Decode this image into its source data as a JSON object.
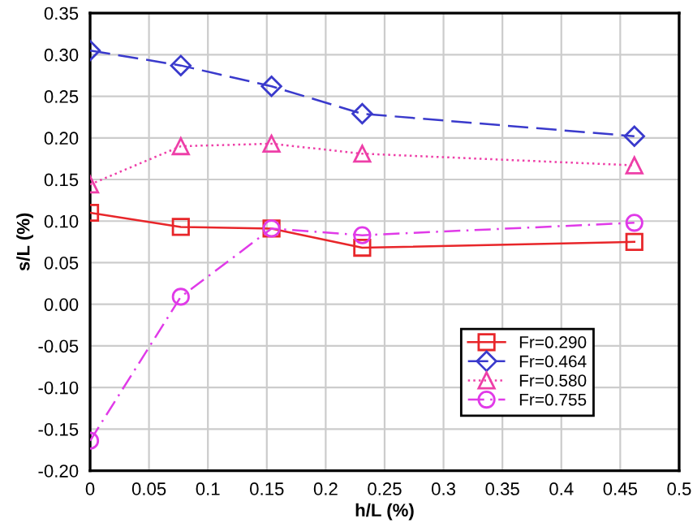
{
  "chart_data": {
    "type": "line",
    "xlabel": "h/L (%)",
    "ylabel": "s/L (%)",
    "x": [
      0,
      0.077,
      0.154,
      0.231,
      0.462
    ],
    "xlim": [
      0,
      0.5
    ],
    "xticks": [
      0,
      0.05,
      0.1,
      0.15,
      0.2,
      0.25,
      0.3,
      0.35,
      0.4,
      0.45,
      0.5
    ],
    "ylim": [
      -0.2,
      0.35
    ],
    "yticks": [
      {
        "value": -0.2,
        "label": "-0.20"
      },
      {
        "value": -0.15,
        "label": "-0.15"
      },
      {
        "value": -0.1,
        "label": "-0.10"
      },
      {
        "value": -0.05,
        "label": "-0.05"
      },
      {
        "value": 0,
        "label": "0.00"
      },
      {
        "value": 0.05,
        "label": "0.05"
      },
      {
        "value": 0.1,
        "label": "0.10"
      },
      {
        "value": 0.15,
        "label": "0.15"
      },
      {
        "value": 0.2,
        "label": "0.20"
      },
      {
        "value": 0.25,
        "label": "0.25"
      },
      {
        "value": 0.3,
        "label": "0.30"
      },
      {
        "value": 0.35,
        "label": "0.35"
      }
    ],
    "grid": true,
    "legend": "bottom right",
    "series": [
      {
        "name": "Fr=0.290",
        "color": "#e8262a",
        "marker": "square",
        "line_style": "solid",
        "values": [
          0.11,
          0.093,
          0.091,
          0.068,
          0.075
        ]
      },
      {
        "name": "Fr=0.464",
        "color": "#3a3acc",
        "marker": "diamond",
        "line_style": "dashed",
        "values": [
          0.305,
          0.287,
          0.262,
          0.229,
          0.202
        ]
      },
      {
        "name": "Fr=0.580",
        "color": "#ee3fa8",
        "marker": "triangle",
        "line_style": "dotted",
        "values": [
          0.144,
          0.19,
          0.193,
          0.181,
          0.167
        ]
      },
      {
        "name": "Fr=0.755",
        "color": "#e03ae8",
        "marker": "circle",
        "line_style": "dashdot",
        "values": [
          -0.164,
          0.009,
          0.091,
          0.083,
          0.098
        ]
      }
    ]
  }
}
